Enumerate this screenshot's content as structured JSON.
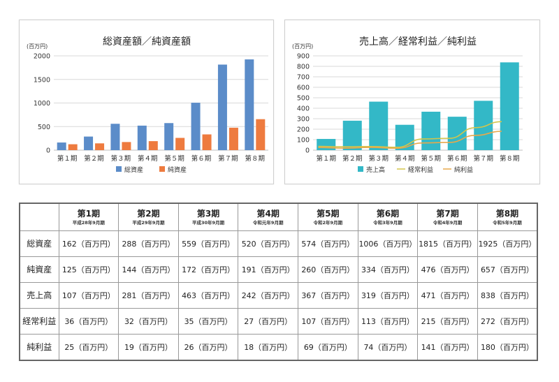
{
  "colors": {
    "total_assets": "#5b8cc9",
    "net_assets": "#ee7b3f",
    "sales": "#33b8c7",
    "ordinary_profit": "#d4c54a",
    "net_income": "#e8a84a"
  },
  "chart_data": [
    {
      "type": "bar",
      "title": "総資産額／純資産額",
      "unit_label": "(百万円)",
      "categories": [
        "第１期",
        "第２期",
        "第３期",
        "第４期",
        "第５期",
        "第６期",
        "第７期",
        "第８期"
      ],
      "yticks": [
        "0",
        "500",
        "1000",
        "1500",
        "2000"
      ],
      "ylim": [
        0,
        2000
      ],
      "grid": true,
      "legend_position": "bottom",
      "series": [
        {
          "name": "総資産",
          "type": "bar",
          "values": [
            162,
            288,
            559,
            520,
            574,
            1006,
            1815,
            1925
          ]
        },
        {
          "name": "純資産",
          "type": "bar",
          "values": [
            125,
            144,
            172,
            191,
            260,
            334,
            476,
            657
          ]
        }
      ]
    },
    {
      "type": "bar",
      "title": "売上高／経常利益／純利益",
      "unit_label": "(百万円)",
      "categories": [
        "第１期",
        "第２期",
        "第３期",
        "第４期",
        "第５期",
        "第６期",
        "第７期",
        "第８期"
      ],
      "yticks": [
        "0",
        "100",
        "200",
        "300",
        "400",
        "500",
        "600",
        "700",
        "800",
        "900"
      ],
      "ylim": [
        0,
        900
      ],
      "grid": true,
      "legend_position": "bottom",
      "series": [
        {
          "name": "売上高",
          "type": "bar",
          "values": [
            107,
            281,
            463,
            242,
            367,
            319,
            471,
            838
          ]
        },
        {
          "name": "経常利益",
          "type": "line",
          "values": [
            36,
            32,
            35,
            27,
            107,
            113,
            215,
            272
          ]
        },
        {
          "name": "純利益",
          "type": "line",
          "values": [
            25,
            19,
            26,
            18,
            69,
            74,
            141,
            180
          ]
        }
      ]
    },
    {
      "type": "table",
      "columns": [
        {
          "period": "第1期",
          "date": "平成28年9月期"
        },
        {
          "period": "第2期",
          "date": "平成29年9月期"
        },
        {
          "period": "第3期",
          "date": "平成30年9月期"
        },
        {
          "period": "第4期",
          "date": "令和元年9月期"
        },
        {
          "period": "第5期",
          "date": "令和2年9月期"
        },
        {
          "period": "第6期",
          "date": "令和3年9月期"
        },
        {
          "period": "第7期",
          "date": "令和4年9月期"
        },
        {
          "period": "第8期",
          "date": "令和5年9月期"
        }
      ],
      "rows": [
        {
          "label": "総資産",
          "cells": [
            "162（百万円）",
            "288（百万円）",
            "559（百万円）",
            "520（百万円）",
            "574（百万円）",
            "1006（百万円）",
            "1815（百万円）",
            "1925（百万円）"
          ]
        },
        {
          "label": "純資産",
          "cells": [
            "125（百万円）",
            "144（百万円）",
            "172（百万円）",
            "191（百万円）",
            "260（百万円）",
            "334（百万円）",
            "476（百万円）",
            "657（百万円）"
          ]
        },
        {
          "label": "売上高",
          "cells": [
            "107（百万円）",
            "281（百万円）",
            "463（百万円）",
            "242（百万円）",
            "367（百万円）",
            "319（百万円）",
            "471（百万円）",
            "838（百万円）"
          ]
        },
        {
          "label": "経常利益",
          "cells": [
            "36（百万円）",
            "32（百万円）",
            "35（百万円）",
            "27（百万円）",
            "107（百万円）",
            "113（百万円）",
            "215（百万円）",
            "272（百万円）"
          ]
        },
        {
          "label": "純利益",
          "cells": [
            "25（百万円）",
            "19（百万円）",
            "26（百万円）",
            "18（百万円）",
            "69（百万円）",
            "74（百万円）",
            "141（百万円）",
            "180（百万円）"
          ]
        }
      ]
    }
  ]
}
